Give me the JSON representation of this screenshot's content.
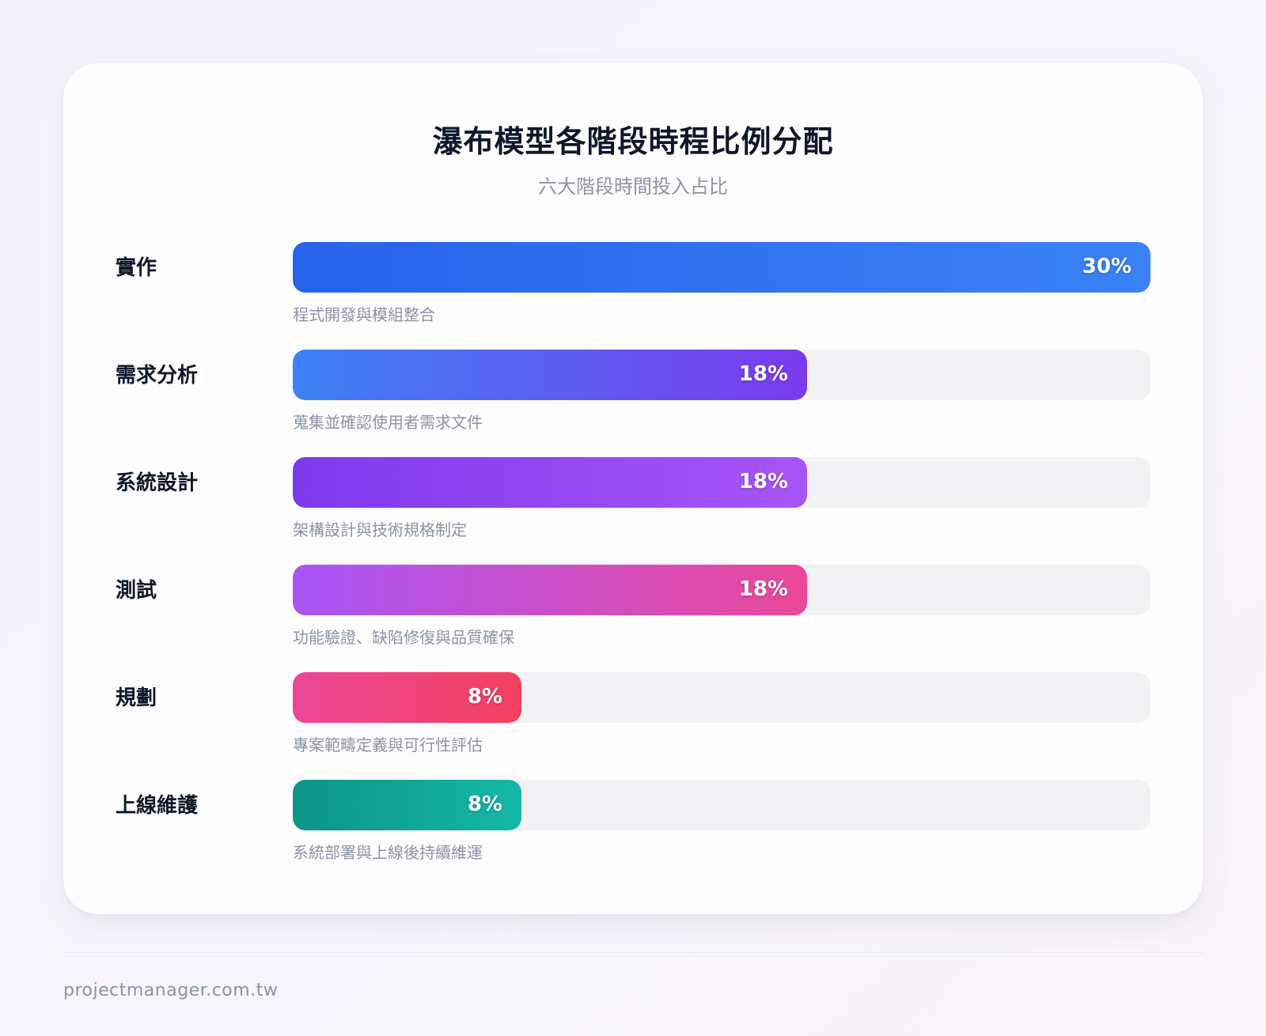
{
  "chart_data": {
    "type": "bar",
    "title": "瀑布模型各階段時程比例分配",
    "subtitle": "六大階段時間投入占比",
    "xlim": [
      0,
      30
    ],
    "categories": [
      "實作",
      "需求分析",
      "系統設計",
      "測試",
      "規劃",
      "上線維護"
    ],
    "values": [
      30,
      18,
      18,
      18,
      8,
      8
    ],
    "value_labels": [
      "30%",
      "18%",
      "18%",
      "18%",
      "8%",
      "8%"
    ],
    "descriptions": [
      "程式開發與模組整合",
      "蒐集並確認使用者需求文件",
      "架構設計與技術規格制定",
      "功能驗證、缺陷修復與品質確保",
      "專案範疇定義與可行性評估",
      "系統部署與上線後持續維運"
    ],
    "colors": [
      [
        "#2563eb",
        "#3b82f6"
      ],
      [
        "#3b82f6",
        "#7c3aed"
      ],
      [
        "#7c3aed",
        "#a855f7"
      ],
      [
        "#a855f7",
        "#ec4899"
      ],
      [
        "#ec4899",
        "#f43f5e"
      ],
      [
        "#0d9488",
        "#14b8a6"
      ]
    ]
  },
  "footer": {
    "source": "projectmanager.com.tw"
  }
}
